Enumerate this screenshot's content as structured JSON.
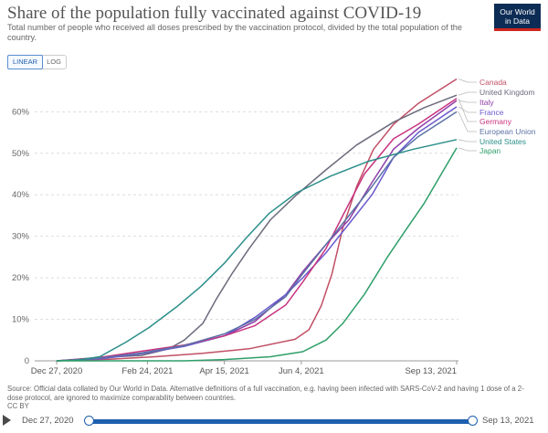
{
  "header": {
    "title": "Share of the population fully vaccinated against COVID-19",
    "subtitle": "Total number of people who received all doses prescribed by the vaccination protocol, divided by the total population of the country.",
    "logo_line1": "Our World",
    "logo_line2": "in Data"
  },
  "controls": {
    "linear_label": "LINEAR",
    "log_label": "LOG",
    "selected": "LINEAR"
  },
  "footer": {
    "source": "Source: Official data collated by Our World in Data. Alternative definitions of a full vaccination, e.g. having been infected with SARS-CoV-2 and having 1 dose of a 2-dose protocol, are ignored to maximize comparability between countries.",
    "license": "CC BY"
  },
  "timeline": {
    "start_label": "Dec 27, 2020",
    "end_label": "Sep 13, 2021"
  },
  "colors": {
    "accent": "#1e5fae"
  },
  "chart_data": {
    "type": "line",
    "title": "Share of the population fully vaccinated against COVID-19",
    "x_tick_labels": [
      "Dec 27, 2020",
      "Feb 24, 2021",
      "Apr 15, 2021",
      "Jun 4, 2021",
      "Sep 13, 2021"
    ],
    "x_range": [
      "2020-12-27",
      "2021-09-13"
    ],
    "y_ticks": [
      0,
      10,
      20,
      30,
      40,
      50,
      60
    ],
    "y_tick_labels": [
      "0",
      "10%",
      "20%",
      "30%",
      "40%",
      "50%",
      "60%"
    ],
    "y_range": [
      0,
      68
    ],
    "grid": "horizontal dashed",
    "legend": "right end labels",
    "series": [
      {
        "name": "Canada",
        "color": "#c15065",
        "points": [
          [
            "2020-12-27",
            0
          ],
          [
            "2021-01-31",
            0.4
          ],
          [
            "2021-03-01",
            1.0
          ],
          [
            "2021-04-01",
            1.8
          ],
          [
            "2021-05-01",
            2.9
          ],
          [
            "2021-05-31",
            5.2
          ],
          [
            "2021-06-09",
            7.5
          ],
          [
            "2021-06-17",
            13.3
          ],
          [
            "2021-06-24",
            21.0
          ],
          [
            "2021-07-01",
            32.0
          ],
          [
            "2021-07-10",
            42.0
          ],
          [
            "2021-07-21",
            51.0
          ],
          [
            "2021-08-03",
            57.0
          ],
          [
            "2021-08-19",
            62.0
          ],
          [
            "2021-09-13",
            67.9
          ]
        ]
      },
      {
        "name": "United Kingdom",
        "color": "#6b6b7d",
        "points": [
          [
            "2020-12-27",
            0
          ],
          [
            "2021-01-20",
            0.7
          ],
          [
            "2021-02-20",
            1.3
          ],
          [
            "2021-03-10",
            2.9
          ],
          [
            "2021-03-20",
            5.0
          ],
          [
            "2021-04-01",
            9.0
          ],
          [
            "2021-04-10",
            15.0
          ],
          [
            "2021-04-20",
            21.0
          ],
          [
            "2021-05-01",
            27.0
          ],
          [
            "2021-05-15",
            34.0
          ],
          [
            "2021-06-01",
            40.0
          ],
          [
            "2021-06-20",
            46.0
          ],
          [
            "2021-07-10",
            52.0
          ],
          [
            "2021-08-03",
            57.5
          ],
          [
            "2021-08-23",
            61.0
          ],
          [
            "2021-09-13",
            64.0
          ]
        ]
      },
      {
        "name": "Italy",
        "color": "#8f3fa8",
        "points": [
          [
            "2020-12-27",
            0
          ],
          [
            "2021-01-20",
            0.5
          ],
          [
            "2021-02-20",
            1.8
          ],
          [
            "2021-03-20",
            3.6
          ],
          [
            "2021-04-15",
            6.0
          ],
          [
            "2021-05-05",
            9.5
          ],
          [
            "2021-05-25",
            16.0
          ],
          [
            "2021-06-05",
            21.5
          ],
          [
            "2021-06-20",
            28.0
          ],
          [
            "2021-07-05",
            34.0
          ],
          [
            "2021-07-20",
            43.0
          ],
          [
            "2021-08-03",
            51.0
          ],
          [
            "2021-08-19",
            56.0
          ],
          [
            "2021-09-13",
            62.7
          ]
        ]
      },
      {
        "name": "France",
        "color": "#6a5acd",
        "points": [
          [
            "2020-12-27",
            0
          ],
          [
            "2021-01-25",
            0.5
          ],
          [
            "2021-02-20",
            1.7
          ],
          [
            "2021-03-20",
            3.5
          ],
          [
            "2021-04-15",
            6.0
          ],
          [
            "2021-05-05",
            10.5
          ],
          [
            "2021-05-25",
            16.0
          ],
          [
            "2021-06-05",
            20.0
          ],
          [
            "2021-06-20",
            26.0
          ],
          [
            "2021-07-05",
            33.0
          ],
          [
            "2021-07-20",
            40.0
          ],
          [
            "2021-08-03",
            49.0
          ],
          [
            "2021-08-19",
            55.0
          ],
          [
            "2021-09-13",
            61.2
          ]
        ]
      },
      {
        "name": "Germany",
        "color": "#c8337f",
        "points": [
          [
            "2020-12-27",
            0
          ],
          [
            "2021-01-20",
            0.6
          ],
          [
            "2021-02-20",
            2.3
          ],
          [
            "2021-03-20",
            3.8
          ],
          [
            "2021-04-15",
            6.0
          ],
          [
            "2021-05-05",
            8.5
          ],
          [
            "2021-05-25",
            13.5
          ],
          [
            "2021-06-05",
            19.0
          ],
          [
            "2021-06-20",
            27.0
          ],
          [
            "2021-07-01",
            35.0
          ],
          [
            "2021-07-15",
            45.0
          ],
          [
            "2021-08-03",
            53.5
          ],
          [
            "2021-08-19",
            57.0
          ],
          [
            "2021-09-13",
            63.2
          ]
        ]
      },
      {
        "name": "European Union",
        "color": "#5b72a5",
        "points": [
          [
            "2020-12-27",
            0
          ],
          [
            "2021-01-20",
            0.5
          ],
          [
            "2021-02-20",
            1.9
          ],
          [
            "2021-03-20",
            3.7
          ],
          [
            "2021-04-15",
            6.5
          ],
          [
            "2021-05-05",
            10.0
          ],
          [
            "2021-05-25",
            15.5
          ],
          [
            "2021-06-05",
            21.0
          ],
          [
            "2021-06-20",
            28.0
          ],
          [
            "2021-07-05",
            35.0
          ],
          [
            "2021-07-20",
            42.0
          ],
          [
            "2021-08-03",
            49.0
          ],
          [
            "2021-08-19",
            54.0
          ],
          [
            "2021-09-13",
            60.0
          ]
        ]
      },
      {
        "name": "United States",
        "color": "#2b8e8a",
        "points": [
          [
            "2020-12-27",
            0
          ],
          [
            "2021-01-10",
            0.2
          ],
          [
            "2021-01-24",
            1.0
          ],
          [
            "2021-02-10",
            4.5
          ],
          [
            "2021-02-25",
            8.0
          ],
          [
            "2021-03-15",
            13.0
          ],
          [
            "2021-03-31",
            18.0
          ],
          [
            "2021-04-15",
            23.5
          ],
          [
            "2021-04-29",
            29.5
          ],
          [
            "2021-05-14",
            35.5
          ],
          [
            "2021-06-01",
            40.5
          ],
          [
            "2021-06-23",
            44.5
          ],
          [
            "2021-07-17",
            48.0
          ],
          [
            "2021-08-16",
            51.0
          ],
          [
            "2021-09-13",
            53.3
          ]
        ]
      },
      {
        "name": "Japan",
        "color": "#2e9e68",
        "points": [
          [
            "2020-12-27",
            0
          ],
          [
            "2021-03-20",
            0
          ],
          [
            "2021-04-15",
            0.3
          ],
          [
            "2021-05-15",
            1.0
          ],
          [
            "2021-06-05",
            2.2
          ],
          [
            "2021-06-20",
            5.0
          ],
          [
            "2021-07-01",
            9.0
          ],
          [
            "2021-07-15",
            16.0
          ],
          [
            "2021-07-30",
            25.0
          ],
          [
            "2021-08-10",
            31.0
          ],
          [
            "2021-08-23",
            38.0
          ],
          [
            "2021-09-03",
            45.0
          ],
          [
            "2021-09-13",
            51.3
          ]
        ]
      }
    ]
  }
}
